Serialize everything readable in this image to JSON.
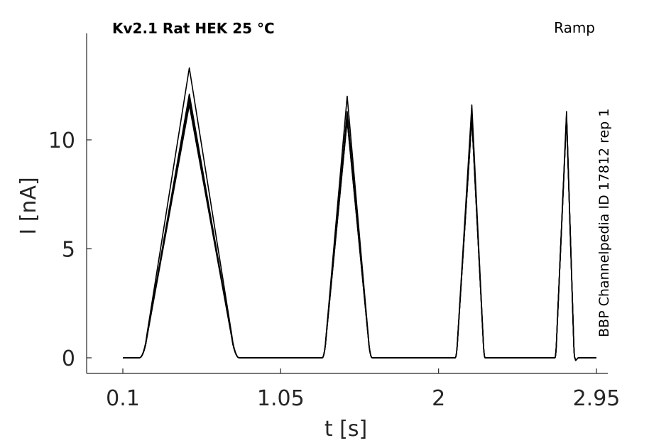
{
  "chart_data": {
    "type": "line",
    "title": "Kv2.1  Rat  HEK  25 °C",
    "protocol_label": "Ramp",
    "side_label": "BBP Channelpedia ID 17812 rep 1",
    "xlabel": "t [s]",
    "ylabel": "I [nA]",
    "xlim": [
      -0.0,
      3.0
    ],
    "ylim": [
      -0.7,
      14.8
    ],
    "xticks": [
      0.1,
      1.05,
      2,
      2.95
    ],
    "xtick_labels": [
      "0.1",
      "1.05",
      "2",
      "2.95"
    ],
    "yticks": [
      0,
      5,
      10
    ],
    "ytick_labels": [
      "0",
      "5",
      "10"
    ],
    "grid": false,
    "line_color": "#000000",
    "pulses": [
      {
        "start": 0.2,
        "peak_t": 0.5,
        "end": 0.8,
        "peaks": [
          13.3,
          12.1,
          11.9,
          11.8,
          11.6
        ]
      },
      {
        "start": 1.3,
        "peak_t": 1.45,
        "end": 1.6,
        "peaks": [
          12.0,
          11.3,
          11.1,
          10.9
        ]
      },
      {
        "start": 2.1,
        "peak_t": 2.2,
        "end": 2.28,
        "peaks": [
          11.6,
          11.2,
          11.0
        ]
      },
      {
        "start": 2.7,
        "peak_t": 2.77,
        "end": 2.82,
        "peaks": [
          11.3,
          11.1
        ]
      }
    ],
    "baseline": 0,
    "t_start": 0.1,
    "t_end": 2.95
  }
}
